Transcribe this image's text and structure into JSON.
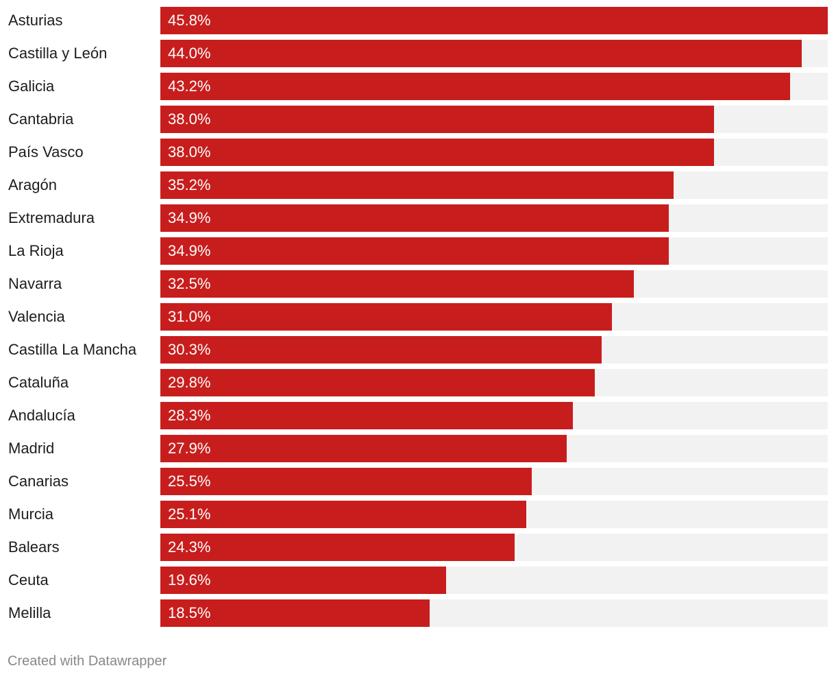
{
  "chart_data": {
    "type": "bar",
    "orientation": "horizontal",
    "categories": [
      "Asturias",
      "Castilla y León",
      "Galicia",
      "Cantabria",
      "País Vasco",
      "Aragón",
      "Extremadura",
      "La Rioja",
      "Navarra",
      "Valencia",
      "Castilla La Mancha",
      "Cataluña",
      "Andalucía",
      "Madrid",
      "Canarias",
      "Murcia",
      "Balears",
      "Ceuta",
      "Melilla"
    ],
    "values": [
      45.8,
      44.0,
      43.2,
      38.0,
      38.0,
      35.2,
      34.9,
      34.9,
      32.5,
      31.0,
      30.3,
      29.8,
      28.3,
      27.9,
      25.5,
      25.1,
      24.3,
      19.6,
      18.5
    ],
    "value_labels": [
      "45.8%",
      "44.0%",
      "43.2%",
      "38.0%",
      "38.0%",
      "35.2%",
      "34.9%",
      "34.9%",
      "32.5%",
      "31.0%",
      "30.3%",
      "29.8%",
      "28.3%",
      "27.9%",
      "25.5%",
      "25.1%",
      "24.3%",
      "19.6%",
      "18.5%"
    ],
    "xlim": [
      0,
      45.8
    ],
    "title": "",
    "xlabel": "",
    "ylabel": "",
    "grid": false,
    "legend": "none",
    "colors": {
      "bar": "#c71e1d",
      "track": "#f2f2f2",
      "label": "#1d1d1d",
      "value_label": "#ffffff"
    }
  },
  "footer": {
    "credit": "Created with Datawrapper"
  }
}
